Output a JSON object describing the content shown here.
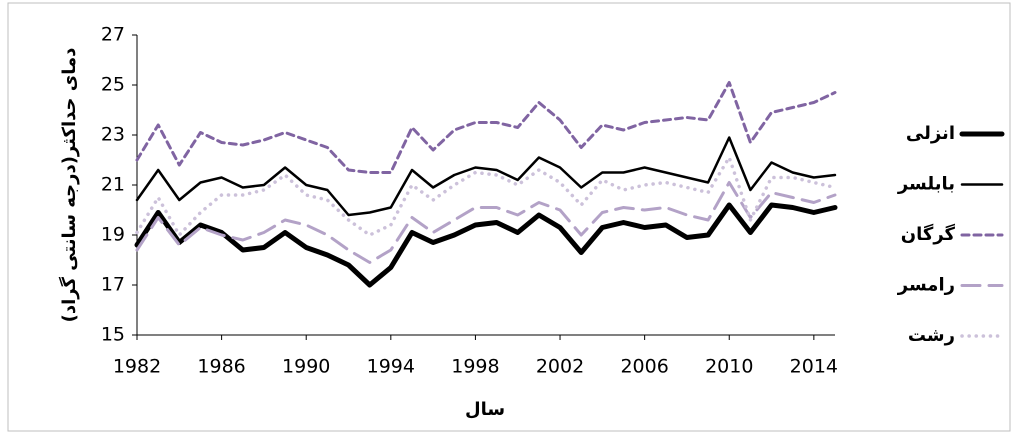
{
  "chart_data": {
    "type": "line",
    "y_label": "دمای حداکثر(درجه سانتی گراد)",
    "x_label": "سال",
    "x": [
      1982,
      1983,
      1984,
      1985,
      1986,
      1987,
      1988,
      1989,
      1990,
      1991,
      1992,
      1993,
      1994,
      1995,
      1996,
      1997,
      1998,
      1999,
      2000,
      2001,
      2002,
      2003,
      2004,
      2005,
      2006,
      2007,
      2008,
      2009,
      2010,
      2011,
      2012,
      2013,
      2014,
      2015
    ],
    "xlim": [
      1982,
      2015
    ],
    "xticks": [
      1982,
      1986,
      1990,
      1994,
      1998,
      2002,
      2006,
      2010,
      2014
    ],
    "ylim": [
      15,
      27
    ],
    "yticks": [
      15,
      17,
      19,
      21,
      23,
      25,
      27
    ],
    "grid": false,
    "legend": "right",
    "series": [
      {
        "name": "انزلی",
        "color": "#000000",
        "values": [
          18.6,
          19.9,
          18.7,
          19.4,
          19.1,
          18.4,
          18.5,
          19.1,
          18.5,
          18.2,
          17.8,
          17.0,
          17.7,
          19.1,
          18.7,
          19.0,
          19.4,
          19.5,
          19.1,
          19.8,
          19.3,
          18.3,
          19.3,
          19.5,
          19.3,
          19.4,
          18.9,
          19.0,
          20.2,
          19.1,
          20.2,
          20.1,
          19.9,
          20.1
        ]
      },
      {
        "name": "بابلسر",
        "color": "#000000",
        "values": [
          20.4,
          21.6,
          20.4,
          21.1,
          21.3,
          20.9,
          21.0,
          21.7,
          21.0,
          20.8,
          19.8,
          19.9,
          20.1,
          21.6,
          20.9,
          21.4,
          21.7,
          21.6,
          21.2,
          22.1,
          21.7,
          20.9,
          21.5,
          21.5,
          21.7,
          21.5,
          21.3,
          21.1,
          22.9,
          20.8,
          21.9,
          21.5,
          21.3,
          21.4
        ]
      },
      {
        "name": "گرگان",
        "color": "#8064a2",
        "values": [
          22.0,
          23.4,
          21.8,
          23.1,
          22.7,
          22.6,
          22.8,
          23.1,
          22.8,
          22.5,
          21.6,
          21.5,
          21.5,
          23.3,
          22.4,
          23.2,
          23.5,
          23.5,
          23.3,
          24.3,
          23.6,
          22.5,
          23.4,
          23.2,
          23.5,
          23.6,
          23.7,
          23.6,
          25.1,
          22.7,
          23.9,
          24.1,
          24.3,
          24.7
        ]
      },
      {
        "name": "رامسر",
        "color": "#b3a2c7",
        "values": [
          18.4,
          19.7,
          18.6,
          19.3,
          19.0,
          18.8,
          19.1,
          19.6,
          19.4,
          19.0,
          18.4,
          17.9,
          18.4,
          19.7,
          19.1,
          19.6,
          20.1,
          20.1,
          19.8,
          20.3,
          20.0,
          19.0,
          19.9,
          20.1,
          20.0,
          20.1,
          19.8,
          19.6,
          21.1,
          19.7,
          20.7,
          20.5,
          20.3,
          20.6
        ]
      },
      {
        "name": "رشت",
        "color": "#ccc1da",
        "values": [
          19.1,
          20.5,
          19.0,
          19.9,
          20.6,
          20.6,
          20.8,
          21.4,
          20.6,
          20.4,
          19.6,
          19.0,
          19.4,
          21.0,
          20.4,
          21.0,
          21.5,
          21.4,
          21.0,
          21.6,
          21.1,
          20.2,
          21.2,
          20.8,
          21.0,
          21.1,
          20.9,
          20.7,
          22.1,
          19.6,
          21.3,
          21.3,
          21.1,
          20.9
        ]
      }
    ]
  }
}
